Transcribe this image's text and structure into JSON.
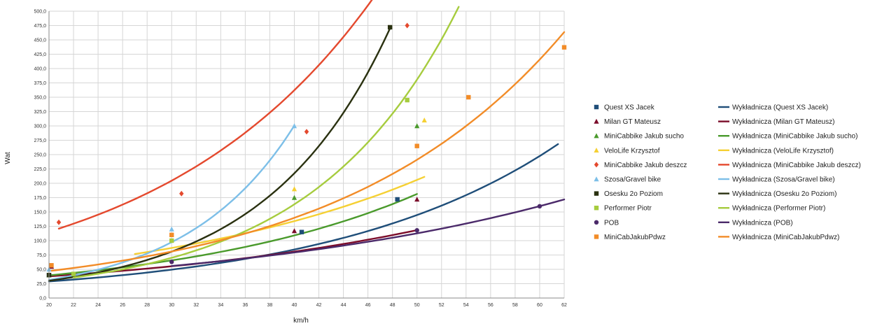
{
  "chart_data": {
    "type": "scatter",
    "title": "",
    "xlabel": "km/h",
    "ylabel": "Wat",
    "xlim": [
      20,
      62
    ],
    "ylim": [
      0,
      500
    ],
    "x_ticks": [
      "20",
      "22",
      "24",
      "26",
      "28",
      "30",
      "32",
      "34",
      "36",
      "38",
      "40",
      "42",
      "44",
      "46",
      "48",
      "50",
      "52",
      "54",
      "56",
      "58",
      "60",
      "62"
    ],
    "y_ticks": [
      "0,0",
      "25,0",
      "50,0",
      "75,0",
      "100,0",
      "125,0",
      "150,0",
      "175,0",
      "200,0",
      "225,0",
      "250,0",
      "275,0",
      "300,0",
      "325,0",
      "350,0",
      "375,0",
      "400,0",
      "425,0",
      "450,0",
      "475,0",
      "500,0"
    ],
    "grid": true,
    "legend_position": "right",
    "series": [
      {
        "name": "Quest XS Jacek",
        "color": "#1f4e79",
        "marker": "square",
        "points": [
          [
            20,
            40
          ],
          [
            40.6,
            115
          ],
          [
            48.4,
            172
          ]
        ],
        "trend": {
          "name": "Wykładnicza (Quest XS Jacek)",
          "a": 9.87,
          "b": 0.0537,
          "x_range": [
            20,
            61.5
          ]
        }
      },
      {
        "name": "Milan GT Mateusz",
        "color": "#7b0c2a",
        "marker": "triangle",
        "points": [
          [
            20.2,
            55
          ],
          [
            40,
            117
          ],
          [
            50,
            172
          ]
        ],
        "trend": {
          "name": "Wykładnicza (Milan GT Mateusz)",
          "a": 17.7,
          "b": 0.038,
          "x_range": [
            20,
            50
          ]
        }
      },
      {
        "name": "MiniCabbike Jakub sucho",
        "color": "#4a9a2c",
        "marker": "triangle",
        "points": [
          [
            20,
            40
          ],
          [
            40,
            175
          ],
          [
            50,
            300
          ]
        ],
        "trend": {
          "name": "Wykładnicza (MiniCabbike Jakub sucho)",
          "a": 14.3,
          "b": 0.0508,
          "x_range": [
            20,
            50
          ]
        }
      },
      {
        "name": "VeloLife Krzysztof",
        "color": "#f5d033",
        "marker": "triangle",
        "points": [
          [
            40,
            190
          ],
          [
            50.6,
            310
          ]
        ],
        "trend": {
          "name": "Wykładnicza (VeloLife Krzysztof)",
          "a": 24.1,
          "b": 0.0429,
          "x_range": [
            27,
            50.6
          ]
        }
      },
      {
        "name": "MiniCabbike Jakub deszcz",
        "color": "#e4492e",
        "marker": "diamond",
        "points": [
          [
            20.8,
            132
          ],
          [
            30.8,
            182
          ],
          [
            41,
            290
          ],
          [
            49.2,
            475
          ]
        ],
        "trend": {
          "name": "Wykładnicza (MiniCabbike Jakub deszcz)",
          "a": 36.9,
          "b": 0.0571,
          "x_range": [
            20.8,
            50
          ]
        }
      },
      {
        "name": "Szosa/Gravel bike",
        "color": "#7dbfe8",
        "marker": "triangle",
        "points": [
          [
            20,
            50
          ],
          [
            30,
            120
          ],
          [
            40,
            300
          ]
        ],
        "trend": {
          "name": "Wykładnicza (Szosa/Gravel bike)",
          "a": 3.3,
          "b": 0.1128,
          "x_range": [
            20,
            40
          ]
        }
      },
      {
        "name": "Osesku 2o Poziom",
        "color": "#2a3110",
        "marker": "square",
        "points": [
          [
            20,
            40
          ],
          [
            47.8,
            472
          ]
        ],
        "trend": {
          "name": "Wykładnicza (Osesku 2o Poziom)",
          "a": 4.16,
          "b": 0.0989,
          "x_range": [
            20,
            47.8
          ]
        }
      },
      {
        "name": "Performer Piotr",
        "color": "#a6cc3e",
        "marker": "square",
        "points": [
          [
            22,
            42
          ],
          [
            30,
            100
          ],
          [
            49.2,
            345
          ]
        ],
        "trend": {
          "name": "Wykładnicza (Performer Piotr)",
          "a": 5.54,
          "b": 0.0846,
          "x_range": [
            22,
            53.4
          ]
        }
      },
      {
        "name": "POB",
        "color": "#4b2a6a",
        "marker": "circle",
        "points": [
          [
            30,
            63
          ],
          [
            50,
            118
          ],
          [
            60,
            160
          ]
        ],
        "trend": {
          "name": "Wykładnicza (POB)",
          "a": 19.5,
          "b": 0.0351,
          "x_range": [
            30,
            62
          ]
        }
      },
      {
        "name": "MiniCabJakubPdwz",
        "color": "#f28c28",
        "marker": "square",
        "points": [
          [
            20.2,
            57
          ],
          [
            30,
            110
          ],
          [
            50,
            265
          ],
          [
            54.2,
            350
          ],
          [
            62,
            437
          ]
        ],
        "trend": {
          "name": "Wykładnicza (MiniCabJakubPdwz)",
          "a": 15.8,
          "b": 0.0545,
          "x_range": [
            20.2,
            62
          ]
        }
      }
    ]
  }
}
